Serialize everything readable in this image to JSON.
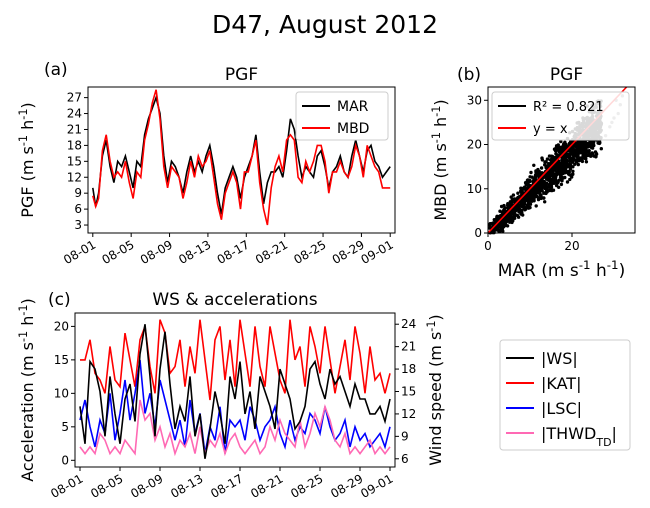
{
  "figure": {
    "suptitle": "D47, August 2012"
  },
  "panels": {
    "a": {
      "label": "(a)"
    },
    "b": {
      "label": "(b)"
    },
    "c": {
      "label": "(c)"
    }
  },
  "colors": {
    "MAR": "#000000",
    "MBD": "#ff0000",
    "WS": "#000000",
    "KAT": "#ff0000",
    "LSC": "#0000ff",
    "THWD": "#ff69b4",
    "scatter": "#000000",
    "identity": "#ff0000"
  },
  "chart_data": [
    {
      "id": "a",
      "type": "line",
      "title": "PGF",
      "ylabel": "PGF (m s⁻¹ h⁻¹)",
      "xlabel": "",
      "x_ticks": [
        "08-01",
        "08-05",
        "08-09",
        "08-13",
        "08-17",
        "08-21",
        "08-25",
        "08-29",
        "09-01"
      ],
      "x_tick_pos": [
        0,
        4,
        8,
        12,
        16,
        20,
        24,
        28,
        31
      ],
      "y_ticks": [
        3,
        6,
        9,
        12,
        15,
        18,
        21,
        24,
        27
      ],
      "xlim": [
        -0.5,
        31.5
      ],
      "ylim": [
        1.5,
        29
      ],
      "grid": false,
      "legend": "top-right",
      "series": [
        {
          "name": "MAR",
          "color": "#000000",
          "x": [
            0,
            0.3,
            0.6,
            1,
            1.4,
            1.8,
            2.2,
            2.6,
            3,
            3.4,
            3.8,
            4.2,
            4.6,
            5,
            5.4,
            5.8,
            6.2,
            6.6,
            7,
            7.4,
            7.8,
            8.2,
            8.6,
            9,
            9.4,
            9.8,
            10.2,
            10.6,
            11,
            11.4,
            11.8,
            12.2,
            12.6,
            13,
            13.4,
            13.8,
            14.2,
            14.6,
            15,
            15.4,
            15.8,
            16.2,
            16.6,
            17,
            17.4,
            17.8,
            18.2,
            18.6,
            19,
            19.4,
            19.8,
            20.2,
            20.6,
            21,
            21.4,
            21.8,
            22.2,
            22.6,
            23,
            23.4,
            23.8,
            24.2,
            24.6,
            25,
            25.4,
            25.8,
            26.2,
            26.6,
            27,
            27.4,
            27.8,
            28.2,
            28.6,
            29,
            29.4,
            29.8,
            30.2,
            30.6,
            31
          ],
          "y": [
            10,
            6.5,
            9,
            16,
            19,
            14,
            11,
            15,
            14,
            16,
            13,
            10,
            15,
            14,
            20,
            23,
            25,
            27,
            24,
            16,
            11,
            15,
            14,
            12,
            9,
            13,
            16,
            13,
            15,
            13,
            16,
            18,
            14,
            9,
            5,
            10,
            12,
            14,
            12,
            8,
            12,
            14,
            16,
            20,
            13,
            7,
            11,
            13,
            13,
            14,
            12,
            17,
            23,
            21,
            16,
            12,
            14,
            13,
            12,
            16,
            17,
            14,
            10,
            13,
            14,
            16,
            13,
            12,
            16,
            19,
            16,
            13,
            17,
            18,
            15,
            14,
            12,
            13,
            14
          ]
        },
        {
          "name": "MBD",
          "color": "#ff0000",
          "x": [
            0,
            0.3,
            0.6,
            1,
            1.4,
            1.8,
            2.2,
            2.6,
            3,
            3.4,
            3.8,
            4.2,
            4.6,
            5,
            5.4,
            5.8,
            6.2,
            6.6,
            7,
            7.4,
            7.8,
            8.2,
            8.6,
            9,
            9.4,
            9.8,
            10.2,
            10.6,
            11,
            11.4,
            11.8,
            12.2,
            12.6,
            13,
            13.4,
            13.8,
            14.2,
            14.6,
            15,
            15.4,
            15.8,
            16.2,
            16.6,
            17,
            17.4,
            17.8,
            18.2,
            18.6,
            19,
            19.4,
            19.8,
            20.2,
            20.6,
            21,
            21.4,
            21.8,
            22.2,
            22.6,
            23,
            23.4,
            23.8,
            24.2,
            24.6,
            25,
            25.4,
            25.8,
            26.2,
            26.6,
            27,
            27.4,
            27.8,
            28.2,
            28.6,
            29,
            29.4,
            29.8,
            30.2,
            30.6,
            31
          ],
          "y": [
            8.5,
            6.5,
            8,
            17,
            20,
            15,
            12,
            13,
            12,
            15,
            11,
            8,
            13,
            12,
            19,
            22,
            26,
            28.5,
            23,
            14,
            10,
            14,
            13,
            12,
            8,
            11,
            15,
            12,
            16,
            14,
            15,
            17,
            12,
            7,
            4,
            9,
            11,
            13,
            11,
            6,
            13,
            13,
            16,
            19,
            11,
            6,
            3,
            10,
            14,
            16,
            13,
            19,
            20,
            19,
            12,
            11,
            15,
            13,
            15,
            18,
            18,
            15,
            9,
            13,
            13,
            15,
            13,
            12,
            14,
            18,
            16,
            12,
            18,
            16,
            14,
            13,
            10,
            10,
            10
          ]
        }
      ]
    },
    {
      "id": "b",
      "type": "scatter",
      "title": "PGF",
      "xlabel": "MAR (m s⁻¹ h⁻¹)",
      "ylabel": "MBD (m s⁻¹ h⁻¹)",
      "x_ticks": [
        0,
        20
      ],
      "y_ticks": [
        0,
        10,
        20,
        30
      ],
      "xlim": [
        0,
        35
      ],
      "ylim": [
        0,
        33
      ],
      "legend": "top-left",
      "r2_label": "R² = 0.821",
      "identity_label": "y = x",
      "cloud": {
        "slope": 0.92,
        "spread": 2.6,
        "x_range": [
          0.3,
          27
        ]
      },
      "outliers": [
        [
          28,
          22
        ],
        [
          29,
          24
        ],
        [
          30,
          26
        ],
        [
          31,
          27
        ],
        [
          31.5,
          29
        ],
        [
          32,
          31
        ],
        [
          30.5,
          30
        ],
        [
          29.5,
          25
        ]
      ]
    },
    {
      "id": "c",
      "type": "line",
      "title": "WS & accelerations",
      "ylabel": "Acceleration (m s⁻¹ h⁻¹)",
      "y2label": "Wind speed (m s⁻¹)",
      "x_ticks": [
        "08-01",
        "08-05",
        "08-09",
        "08-13",
        "08-17",
        "08-21",
        "08-25",
        "08-29",
        "09-01"
      ],
      "x_tick_pos": [
        0,
        4,
        8,
        12,
        16,
        20,
        24,
        28,
        31
      ],
      "y_ticks": [
        0,
        5,
        10,
        15,
        20
      ],
      "y2_ticks": [
        6,
        9,
        12,
        15,
        18,
        21,
        24
      ],
      "xlim": [
        -0.5,
        31.5
      ],
      "ylim": [
        -1,
        22
      ],
      "y2lim": [
        4.9,
        25.5
      ],
      "legend": "outside-right",
      "series": [
        {
          "name": "|WS|",
          "axis": "right",
          "color": "#000000",
          "x": [
            0,
            0.5,
            1,
            1.5,
            2,
            2.5,
            3,
            3.5,
            4,
            4.5,
            5,
            5.5,
            6,
            6.5,
            7,
            7.5,
            8,
            8.5,
            9,
            9.5,
            10,
            10.5,
            11,
            11.5,
            12,
            12.5,
            13,
            13.5,
            14,
            14.5,
            15,
            15.5,
            16,
            16.5,
            17,
            17.5,
            18,
            18.5,
            19,
            19.5,
            20,
            20.5,
            21,
            21.5,
            22,
            22.5,
            23,
            23.5,
            24,
            24.5,
            25,
            25.5,
            26,
            26.5,
            27,
            27.5,
            28,
            28.5,
            29,
            29.5,
            30,
            30.5,
            31
          ],
          "y": [
            13,
            8,
            19,
            18,
            15,
            9,
            17,
            12,
            8,
            14,
            16,
            11,
            20,
            24,
            17,
            9,
            18,
            23,
            16,
            10,
            13,
            11,
            17,
            9,
            12,
            6,
            10,
            15,
            12,
            8,
            17,
            14,
            19,
            12,
            15,
            10,
            17,
            15,
            13,
            10,
            18,
            16,
            14,
            10,
            11,
            13,
            18,
            19,
            16,
            14,
            18,
            16,
            17,
            15,
            13,
            16,
            14,
            14,
            12,
            12,
            13,
            11,
            14
          ]
        },
        {
          "name": "|KAT|",
          "axis": "left",
          "color": "#ff0000",
          "x": [
            0,
            0.5,
            1,
            1.5,
            2,
            2.5,
            3,
            3.5,
            4,
            4.5,
            5,
            5.5,
            6,
            6.5,
            7,
            7.5,
            8,
            8.5,
            9,
            9.5,
            10,
            10.5,
            11,
            11.5,
            12,
            12.5,
            13,
            13.5,
            14,
            14.5,
            15,
            15.5,
            16,
            16.5,
            17,
            17.5,
            18,
            18.5,
            19,
            19.5,
            20,
            20.5,
            21,
            21.5,
            22,
            22.5,
            23,
            23.5,
            24,
            24.5,
            25,
            25.5,
            26,
            26.5,
            27,
            27.5,
            28,
            28.5,
            29,
            29.5,
            30,
            30.5,
            31
          ],
          "y": [
            15,
            15,
            18,
            13,
            12,
            10,
            17,
            12,
            11,
            19,
            15,
            11,
            18,
            20,
            14,
            10,
            21,
            19,
            13,
            14,
            18,
            11,
            17,
            13,
            21,
            15,
            9,
            18,
            20,
            12,
            18,
            11,
            21,
            16,
            11,
            20,
            14,
            11,
            20,
            16,
            12,
            10,
            21,
            15,
            17,
            11,
            20,
            17,
            13,
            20,
            15,
            10,
            14,
            18,
            12,
            20,
            16,
            10,
            17,
            12,
            13,
            10,
            13
          ]
        },
        {
          "name": "|LSC|",
          "axis": "left",
          "color": "#0000ff",
          "x": [
            0,
            0.5,
            1,
            1.5,
            2,
            2.5,
            3,
            3.5,
            4,
            4.5,
            5,
            5.5,
            6,
            6.5,
            7,
            7.5,
            8,
            8.5,
            9,
            9.5,
            10,
            10.5,
            11,
            11.5,
            12,
            12.5,
            13,
            13.5,
            14,
            14.5,
            15,
            15.5,
            16,
            16.5,
            17,
            17.5,
            18,
            18.5,
            19,
            19.5,
            20,
            20.5,
            21,
            21.5,
            22,
            22.5,
            23,
            23.5,
            24,
            24.5,
            25,
            25.5,
            26,
            26.5,
            27,
            27.5,
            28,
            28.5,
            29,
            29.5,
            30,
            30.5,
            31
          ],
          "y": [
            6,
            9,
            5,
            2,
            6,
            4,
            10,
            3,
            7,
            12,
            6,
            10,
            15,
            7,
            10,
            5,
            12,
            9,
            6,
            3,
            6,
            2,
            9,
            4,
            7,
            1,
            5,
            3,
            8,
            1,
            6,
            5,
            6,
            3,
            8,
            6,
            3,
            5,
            6,
            8,
            4,
            2,
            6,
            3,
            5,
            4,
            7,
            6,
            4,
            8,
            5,
            3,
            4,
            6,
            2,
            5,
            3,
            4,
            2,
            3,
            4,
            2,
            5
          ]
        },
        {
          "name": "|THWD_TD|",
          "axis": "left",
          "color": "#ff69b4",
          "x": [
            0,
            0.5,
            1,
            1.5,
            2,
            2.5,
            3,
            3.5,
            4,
            4.5,
            5,
            5.5,
            6,
            6.5,
            7,
            7.5,
            8,
            8.5,
            9,
            9.5,
            10,
            10.5,
            11,
            11.5,
            12,
            12.5,
            13,
            13.5,
            14,
            14.5,
            15,
            15.5,
            16,
            16.5,
            17,
            17.5,
            18,
            18.5,
            19,
            19.5,
            20,
            20.5,
            21,
            21.5,
            22,
            22.5,
            23,
            23.5,
            24,
            24.5,
            25,
            25.5,
            26,
            26.5,
            27,
            27.5,
            28,
            28.5,
            29,
            29.5,
            30,
            30.5,
            31
          ],
          "y": [
            2,
            1,
            2,
            1,
            4,
            3,
            1,
            2,
            1,
            3,
            2,
            1,
            9,
            6,
            7,
            3,
            5,
            2,
            4,
            1,
            3,
            2,
            4,
            1,
            5,
            1,
            3,
            2,
            4,
            1,
            3,
            4,
            2,
            1,
            2,
            3,
            1,
            2,
            5,
            3,
            6,
            4,
            3,
            2,
            6,
            2,
            4,
            7,
            5,
            8,
            6,
            3,
            2,
            4,
            1,
            2,
            1,
            2,
            3,
            1,
            2,
            1,
            2
          ]
        }
      ]
    }
  ]
}
